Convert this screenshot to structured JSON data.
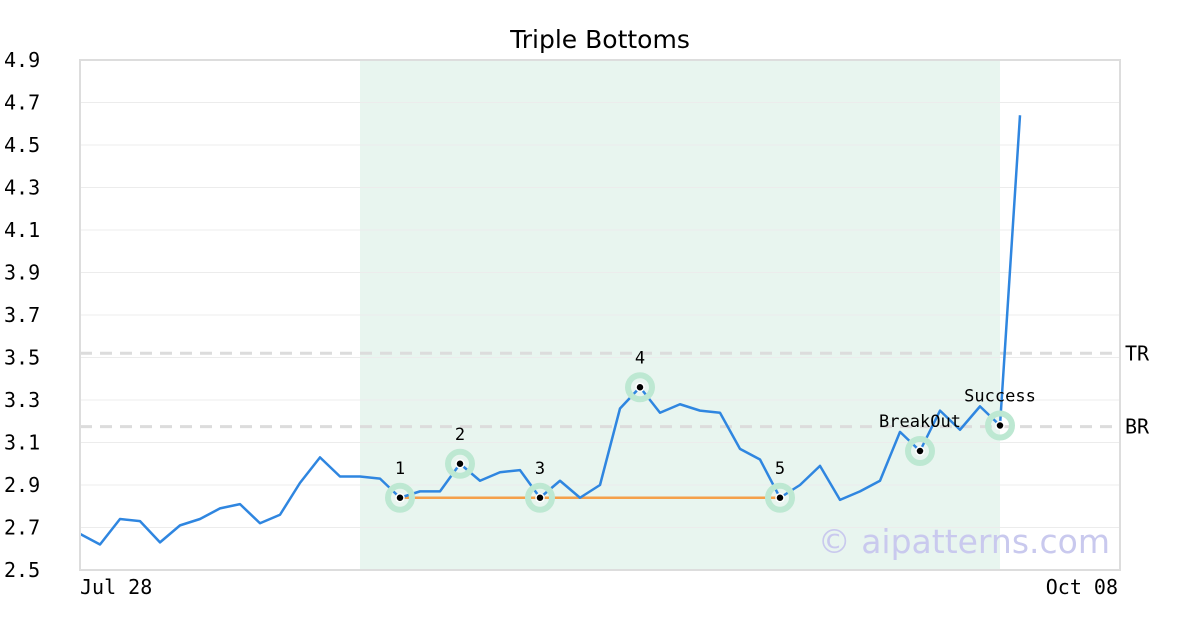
{
  "chart_data": {
    "type": "line",
    "title": "Triple Bottoms",
    "watermark": "© aipatterns.com",
    "x_tick_labels": [
      "Jul 28",
      "Oct 08"
    ],
    "y_ticks": [
      "2.5",
      "2.7",
      "2.9",
      "3.1",
      "3.3",
      "3.5",
      "3.7",
      "3.9",
      "4.1",
      "4.3",
      "4.5",
      "4.7",
      "4.9"
    ],
    "ylim": [
      2.5,
      4.9
    ],
    "x_count": 52,
    "grid": "horizontal",
    "series": [
      {
        "color": "#2f86e0",
        "values": [
          2.67,
          2.62,
          2.74,
          2.73,
          2.63,
          2.71,
          2.74,
          2.79,
          2.81,
          2.72,
          2.76,
          2.91,
          3.03,
          2.94,
          2.94,
          2.93,
          2.84,
          2.87,
          2.87,
          3.0,
          2.92,
          2.96,
          2.97,
          2.84,
          2.92,
          2.84,
          2.9,
          3.26,
          3.36,
          3.24,
          3.28,
          3.25,
          3.24,
          3.07,
          3.02,
          2.84,
          2.9,
          2.99,
          2.83,
          2.87,
          2.92,
          3.15,
          3.06,
          3.25,
          3.16,
          3.27,
          3.18,
          4.64
        ]
      }
    ],
    "highlight_region": {
      "from_index": 14,
      "to_index": 46,
      "color": "#e8f5ef"
    },
    "support_line": {
      "from_index": 16,
      "to_index": 35,
      "y": 2.84,
      "color": "#f5a04a"
    },
    "levels": [
      {
        "label": "TR",
        "y": 3.52
      },
      {
        "label": "BR",
        "y": 3.175
      }
    ],
    "markers": [
      {
        "label": "1",
        "index": 16,
        "y": 2.84
      },
      {
        "label": "2",
        "index": 19,
        "y": 3.0
      },
      {
        "label": "3",
        "index": 23,
        "y": 2.84
      },
      {
        "label": "4",
        "index": 28,
        "y": 3.36
      },
      {
        "label": "5",
        "index": 35,
        "y": 2.84
      },
      {
        "label": "BreakOut",
        "index": 42,
        "y": 3.06
      },
      {
        "label": "Success",
        "index": 46,
        "y": 3.18
      }
    ]
  }
}
